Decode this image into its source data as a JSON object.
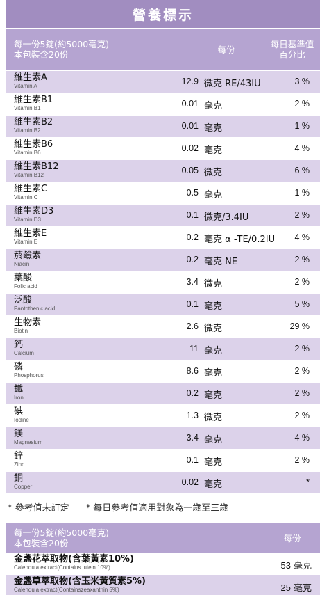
{
  "title": "營養標示",
  "header": {
    "serving_line1": "每一份5錠(約5000毫克)",
    "serving_line2": "本包裝含20份",
    "per_serving": "每份",
    "dv_line1": "每日基準值",
    "dv_line2": "百分比"
  },
  "rows": [
    {
      "zh": "維生素A",
      "en": "Vitamin A",
      "amount": "12.9",
      "unit": "微克 RE/43IU",
      "dv": "3 %"
    },
    {
      "zh": "維生素B1",
      "en": "Vitamin B1",
      "amount": "0.01",
      "unit": "毫克",
      "dv": "2 %"
    },
    {
      "zh": "維生素B2",
      "en": "Vitamin B2",
      "amount": "0.01",
      "unit": "毫克",
      "dv": "1 %"
    },
    {
      "zh": "維生素B6",
      "en": "Vitamin B6",
      "amount": "0.02",
      "unit": "毫克",
      "dv": "4 %"
    },
    {
      "zh": "維生素B12",
      "en": "Vitamin B12",
      "amount": "0.05",
      "unit": "微克",
      "dv": "6 %"
    },
    {
      "zh": "維生素C",
      "en": "Vitamin C",
      "amount": "0.5",
      "unit": "毫克",
      "dv": "1 %"
    },
    {
      "zh": "維生素D3",
      "en": "Vitamin D3",
      "amount": "0.1",
      "unit": "微克/3.4IU",
      "dv": "2 %"
    },
    {
      "zh": "維生素E",
      "en": "Vitamin E",
      "amount": "0.2",
      "unit": "毫克 α -TE/0.2IU",
      "dv": "4 %"
    },
    {
      "zh": "菸鹼素",
      "en": "Niacin",
      "amount": "0.2",
      "unit": "毫克 NE",
      "dv": "2 %"
    },
    {
      "zh": "葉酸",
      "en": "Folic acid",
      "amount": "3.4",
      "unit": "微克",
      "dv": "2 %"
    },
    {
      "zh": "泛酸",
      "en": "Pantothenic acid",
      "amount": "0.1",
      "unit": "毫克",
      "dv": "5 %"
    },
    {
      "zh": "生物素",
      "en": "Biotin",
      "amount": "2.6",
      "unit": "微克",
      "dv": "29 %"
    },
    {
      "zh": "鈣",
      "en": "Calcium",
      "amount": "11",
      "unit": "毫克",
      "dv": "2 %"
    },
    {
      "zh": "磷",
      "en": "Phosphorus",
      "amount": "8.6",
      "unit": "毫克",
      "dv": "2 %"
    },
    {
      "zh": "鐵",
      "en": "Iron",
      "amount": "0.2",
      "unit": "毫克",
      "dv": "2 %"
    },
    {
      "zh": "碘",
      "en": "Iodine",
      "amount": "1.3",
      "unit": "微克",
      "dv": "2 %"
    },
    {
      "zh": "鎂",
      "en": "Magnesium",
      "amount": "3.4",
      "unit": "毫克",
      "dv": "4 %"
    },
    {
      "zh": "鋅",
      "en": "Zinc",
      "amount": "0.1",
      "unit": "毫克",
      "dv": "2 %"
    },
    {
      "zh": "銅",
      "en": "Copper",
      "amount": "0.02",
      "unit": "毫克",
      "dv": "*"
    }
  ],
  "notes": [
    "* 參考值未訂定",
    "* 每日參考值適用對象為一歲至三歲"
  ],
  "table2": {
    "serving_line1": "每一份5錠(約5000毫克)",
    "serving_line2": "本包裝含20份",
    "per_serving": "每份",
    "rows": [
      {
        "zh": "金盞花萃取物(含葉黃素10%)",
        "en": "Calendula extract(Contains lutein 10%)",
        "amount": "53",
        "unit": "毫克"
      },
      {
        "zh": "金盞草萃取物(含玉米黃質素5%)",
        "en": "Calendula extract(Containszeaxanthin  5%)",
        "amount": "25",
        "unit": "毫克"
      }
    ]
  }
}
